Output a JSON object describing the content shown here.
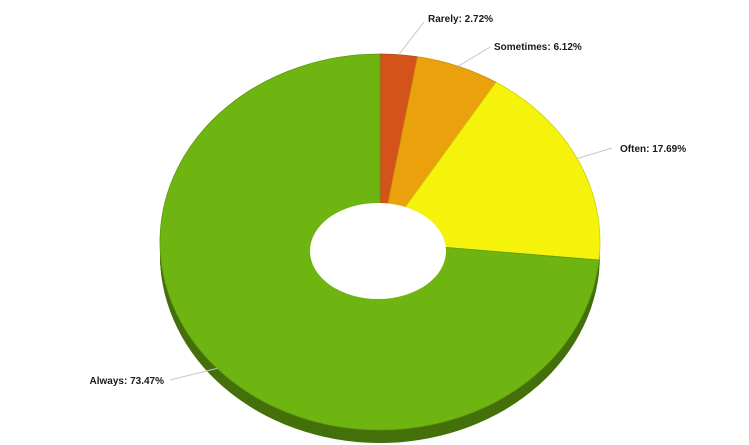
{
  "chart_data": {
    "type": "pie",
    "variant": "donut-3d",
    "title": "",
    "slices": [
      {
        "label": "Rarely",
        "value": 2.72,
        "display": "Rarely: 2.72%",
        "color": "#d4531a"
      },
      {
        "label": "Sometimes",
        "value": 6.12,
        "display": "Sometimes: 6.12%",
        "color": "#eba10c"
      },
      {
        "label": "Often",
        "value": 17.69,
        "display": "Often: 17.69%",
        "color": "#f5f20c"
      },
      {
        "label": "Always",
        "value": 73.47,
        "display": "Always: 73.47%",
        "color": "#6eb512"
      }
    ],
    "start_angle": "12 o'clock",
    "direction": "clockwise",
    "legend": "none",
    "labels": "outside with leader lines"
  }
}
